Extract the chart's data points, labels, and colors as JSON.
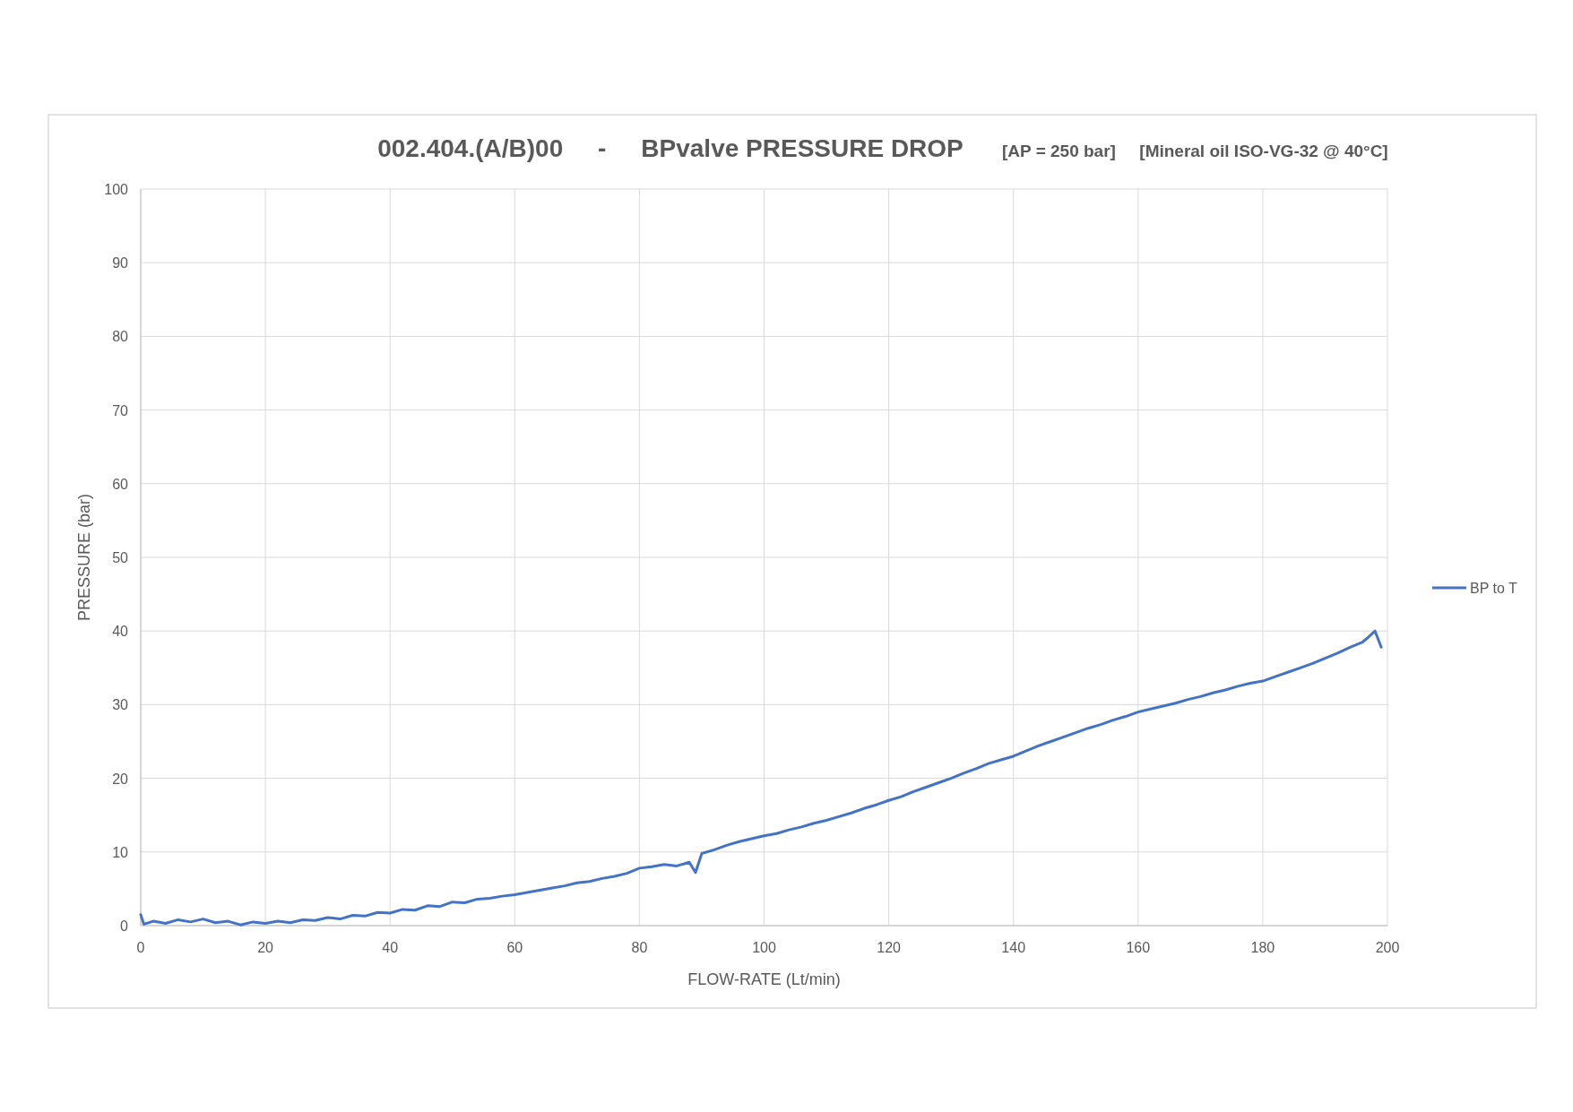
{
  "chart_data": {
    "type": "line",
    "title": "002.404.(A/B)00     -     BPvalve PRESSURE DROP",
    "subtitle": "[AP = 250 bar]     [Mineral oil ISO-VG-32 @ 40°C]",
    "xlabel": "FLOW-RATE  (Lt/min)",
    "ylabel": "PRESSURE  (bar)",
    "xlim": [
      0,
      200
    ],
    "xticks": [
      0,
      20,
      40,
      60,
      80,
      100,
      120,
      140,
      160,
      180,
      200
    ],
    "ylim": [
      0,
      100
    ],
    "yticks": [
      0,
      10,
      20,
      30,
      40,
      50,
      60,
      70,
      80,
      90,
      100
    ],
    "grid": true,
    "legend": "right",
    "marker": "none",
    "line_style": "solid",
    "series": [
      {
        "name": "BP to T",
        "color": "#4472c4",
        "x": [
          0,
          0.5,
          2,
          4,
          6,
          8,
          10,
          12,
          14,
          16,
          18,
          20,
          22,
          24,
          26,
          28,
          30,
          32,
          34,
          36,
          38,
          40,
          42,
          44,
          46,
          48,
          50,
          52,
          54,
          56,
          58,
          60,
          62,
          64,
          66,
          68,
          70,
          72,
          74,
          76,
          78,
          80,
          82,
          84,
          86,
          88,
          89,
          90,
          92,
          94,
          96,
          98,
          100,
          102,
          104,
          106,
          108,
          110,
          112,
          114,
          116,
          118,
          120,
          122,
          124,
          126,
          128,
          130,
          132,
          134,
          136,
          138,
          140,
          142,
          144,
          146,
          148,
          150,
          152,
          154,
          156,
          158,
          160,
          162,
          164,
          166,
          168,
          170,
          172,
          174,
          176,
          178,
          180,
          182,
          184,
          186,
          188,
          190,
          192,
          194,
          196,
          197,
          198,
          199
        ],
        "values": [
          1.5,
          0.2,
          0.6,
          0.3,
          0.8,
          0.5,
          0.9,
          0.4,
          0.6,
          0.1,
          0.5,
          0.3,
          0.6,
          0.4,
          0.8,
          0.7,
          1.1,
          0.9,
          1.4,
          1.3,
          1.8,
          1.7,
          2.2,
          2.1,
          2.7,
          2.6,
          3.2,
          3.1,
          3.6,
          3.7,
          4.0,
          4.2,
          4.5,
          4.8,
          5.1,
          5.4,
          5.8,
          6.0,
          6.4,
          6.7,
          7.1,
          7.8,
          8.0,
          8.3,
          8.1,
          8.6,
          7.2,
          9.8,
          10.3,
          10.9,
          11.4,
          11.8,
          12.2,
          12.5,
          13.0,
          13.4,
          13.9,
          14.3,
          14.8,
          15.3,
          15.9,
          16.4,
          17.0,
          17.5,
          18.2,
          18.8,
          19.4,
          20.0,
          20.7,
          21.3,
          22.0,
          22.5,
          23.0,
          23.7,
          24.4,
          25.0,
          25.6,
          26.2,
          26.8,
          27.3,
          27.9,
          28.4,
          29.0,
          29.4,
          29.8,
          30.2,
          30.7,
          31.1,
          31.6,
          32.0,
          32.5,
          32.9,
          33.2,
          33.8,
          34.4,
          35.0,
          35.6,
          36.3,
          37.0,
          37.8,
          38.5,
          39.2,
          40.0,
          37.8
        ]
      }
    ]
  }
}
